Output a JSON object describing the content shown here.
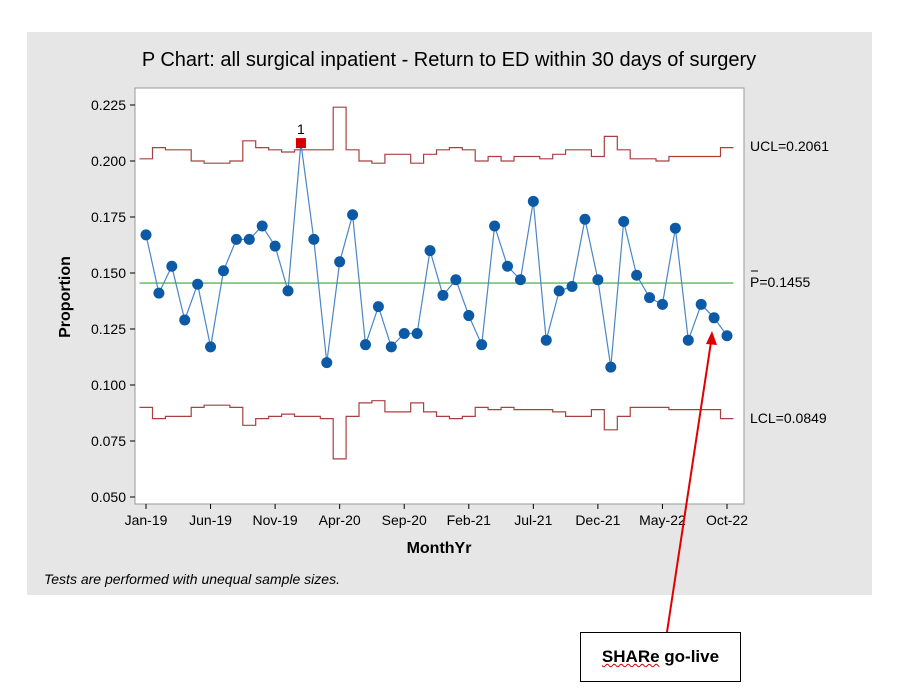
{
  "chart_data": {
    "type": "line",
    "title": "P Chart: all surgical inpatient - Return to ED within 30 days of surgery",
    "xlabel": "MonthYr",
    "ylabel": "Proportion",
    "ylim": [
      0.05,
      0.225
    ],
    "y_ticks": [
      "0.050",
      "0.075",
      "0.100",
      "0.125",
      "0.150",
      "0.175",
      "0.200",
      "0.225"
    ],
    "y_tick_values": [
      0.05,
      0.075,
      0.1,
      0.125,
      0.15,
      0.175,
      0.2,
      0.225
    ],
    "x_tick_labels": [
      "Jan-19",
      "Jun-19",
      "Nov-19",
      "Apr-20",
      "Sep-20",
      "Feb-21",
      "Jul-21",
      "Dec-21",
      "May-22",
      "Oct-22"
    ],
    "x_tick_indices": [
      0,
      5,
      10,
      15,
      20,
      25,
      30,
      35,
      40,
      45
    ],
    "center_line": 0.1455,
    "center_label": "P=0.1455",
    "ucl_label": "UCL=0.2061",
    "lcl_label": "LCL=0.0849",
    "series": [
      {
        "values": [
          0.167,
          0.141,
          0.153,
          0.129,
          0.145,
          0.117,
          0.151,
          0.165,
          0.165,
          0.171,
          0.162,
          0.142,
          0.208,
          0.165,
          0.11,
          0.155,
          0.176,
          0.118,
          0.135,
          0.117,
          0.123,
          0.123,
          0.16,
          0.14,
          0.147,
          0.131,
          0.118,
          0.171,
          0.153,
          0.147,
          0.182,
          0.12,
          0.142,
          0.144,
          0.174,
          0.147,
          0.108,
          0.173,
          0.149,
          0.139,
          0.136,
          0.17,
          0.12,
          0.136,
          0.13,
          0.122
        ]
      }
    ],
    "ucl": [
      0.201,
      0.206,
      0.205,
      0.205,
      0.2,
      0.199,
      0.199,
      0.2,
      0.209,
      0.206,
      0.205,
      0.204,
      0.205,
      0.205,
      0.205,
      0.224,
      0.205,
      0.2,
      0.199,
      0.203,
      0.203,
      0.199,
      0.203,
      0.205,
      0.206,
      0.205,
      0.2,
      0.202,
      0.2,
      0.202,
      0.202,
      0.201,
      0.203,
      0.205,
      0.205,
      0.202,
      0.211,
      0.205,
      0.201,
      0.201,
      0.2,
      0.202,
      0.202,
      0.202,
      0.202,
      0.206
    ],
    "lcl": [
      0.09,
      0.085,
      0.086,
      0.086,
      0.09,
      0.091,
      0.091,
      0.09,
      0.082,
      0.085,
      0.086,
      0.087,
      0.086,
      0.086,
      0.085,
      0.067,
      0.086,
      0.092,
      0.093,
      0.088,
      0.088,
      0.092,
      0.088,
      0.086,
      0.085,
      0.086,
      0.09,
      0.089,
      0.09,
      0.089,
      0.089,
      0.089,
      0.088,
      0.086,
      0.086,
      0.089,
      0.08,
      0.086,
      0.09,
      0.09,
      0.09,
      0.089,
      0.089,
      0.089,
      0.089,
      0.085
    ],
    "flagged_index": 12,
    "flag_label": "1",
    "footnote": "Tests are performed with unequal sample sizes.",
    "colors": {
      "points": "#0c5aa6",
      "line": "#4a86c5",
      "limits": "#a94040",
      "center": "#5cb85c",
      "flag": "#d00000",
      "arrow": "#e00000"
    }
  },
  "callout": {
    "text_squiggle": "SHARe",
    "text_rest": " go-live"
  }
}
